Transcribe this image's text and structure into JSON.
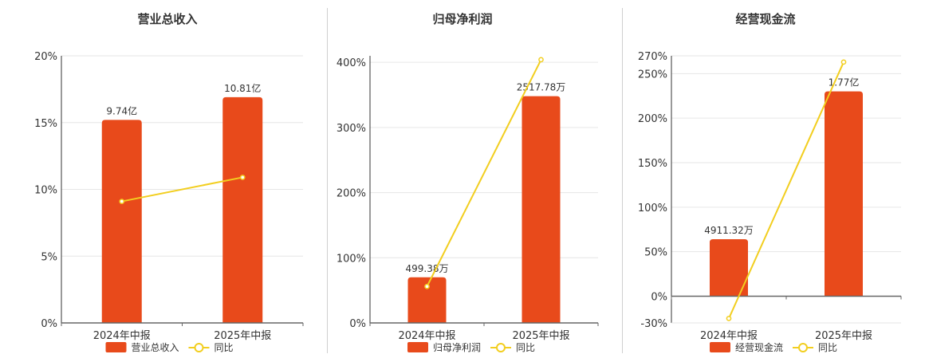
{
  "colors": {
    "bar": "#E84A1B",
    "line": "#F2CE1F",
    "grid": "#e6e6e6",
    "axis": "#333333"
  },
  "chart_data": [
    {
      "type": "bar+line",
      "title": "营业总收入",
      "categories": [
        "2024年中报",
        "2025年中报"
      ],
      "series": [
        {
          "name": "营业总收入",
          "kind": "bar",
          "values": [
            15.2,
            16.9
          ],
          "labels": [
            "9.74亿",
            "10.81亿"
          ]
        },
        {
          "name": "同比",
          "kind": "line",
          "values": [
            9.1,
            10.9
          ]
        }
      ],
      "y_ticks": [
        0,
        5,
        10,
        15,
        20
      ],
      "y_tick_labels": [
        "0%",
        "5%",
        "10%",
        "15%",
        "20%"
      ],
      "ylim": [
        0,
        20
      ],
      "legend": "bottom",
      "grid": true
    },
    {
      "type": "bar+line",
      "title": "归母净利润",
      "categories": [
        "2024年中报",
        "2025年中报"
      ],
      "series": [
        {
          "name": "归母净利润",
          "kind": "bar",
          "values": [
            70,
            348
          ],
          "labels": [
            "499.38万",
            "2517.78万"
          ]
        },
        {
          "name": "同比",
          "kind": "line",
          "values": [
            56,
            404
          ]
        }
      ],
      "y_ticks": [
        0,
        100,
        200,
        300,
        400
      ],
      "y_tick_labels": [
        "0%",
        "100%",
        "200%",
        "300%",
        "400%"
      ],
      "ylim": [
        0,
        410
      ],
      "legend": "bottom",
      "grid": true
    },
    {
      "type": "bar+line",
      "title": "经营现金流",
      "categories": [
        "2024年中报",
        "2025年中报"
      ],
      "series": [
        {
          "name": "经营现金流",
          "kind": "bar",
          "values": [
            64,
            230
          ],
          "labels": [
            "4911.32万",
            "1.77亿"
          ]
        },
        {
          "name": "同比",
          "kind": "line",
          "values": [
            -25,
            263
          ]
        }
      ],
      "y_ticks": [
        -30,
        0,
        50,
        100,
        150,
        200,
        250,
        270
      ],
      "y_tick_labels": [
        "-30%",
        "0%",
        "50%",
        "100%",
        "150%",
        "200%",
        "250%",
        "270%"
      ],
      "ylim": [
        -30,
        270
      ],
      "legend": "bottom",
      "grid": true
    }
  ]
}
